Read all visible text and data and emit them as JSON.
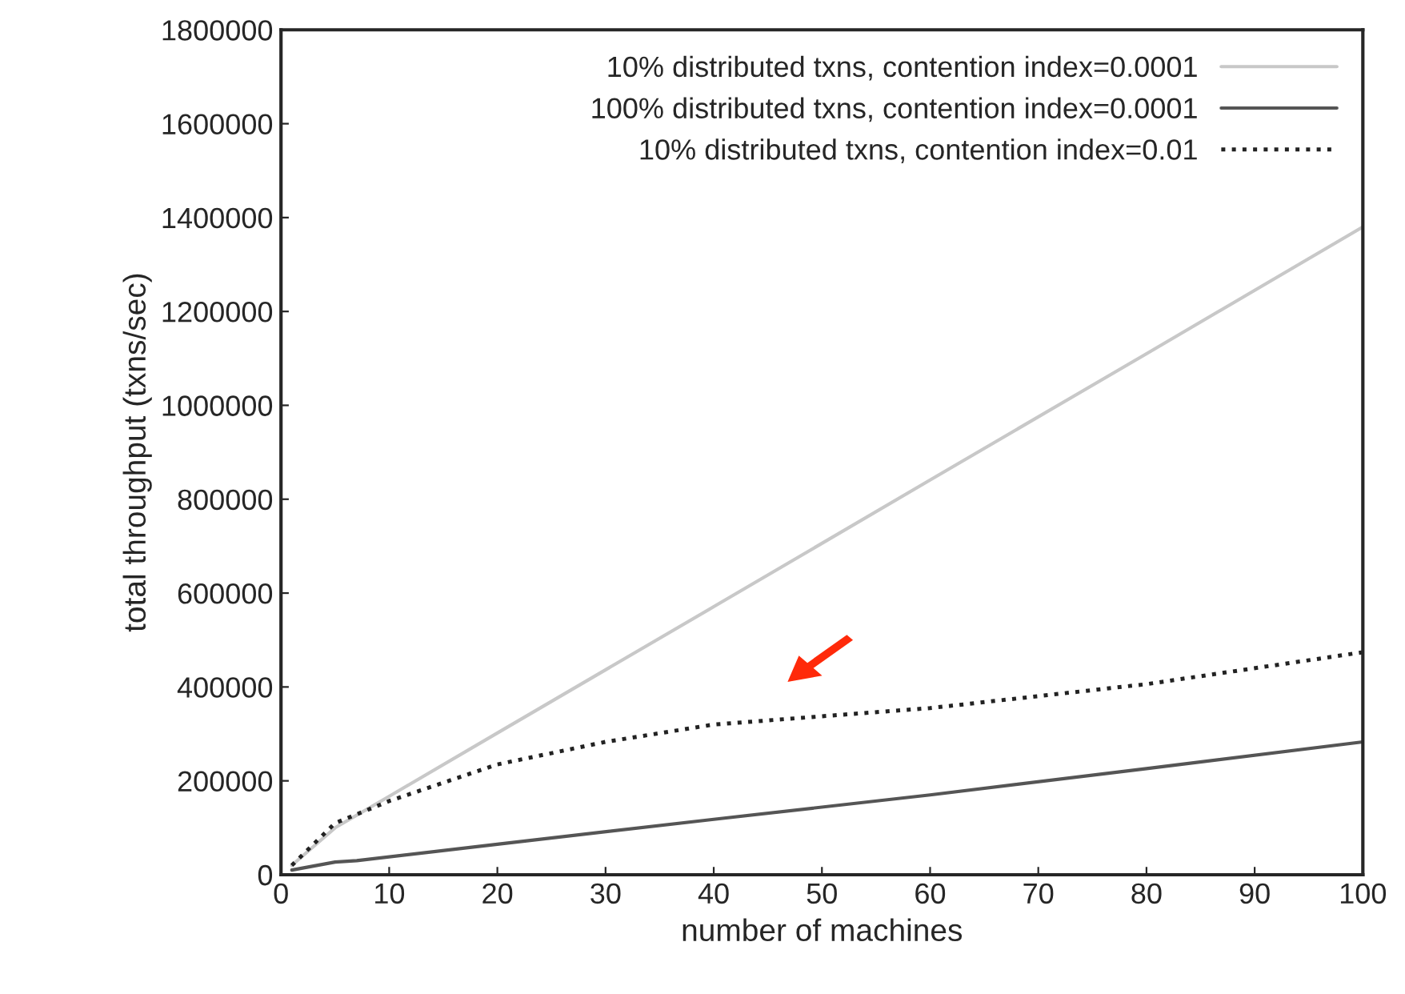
{
  "chart_data": {
    "type": "line",
    "xlabel": "number of machines",
    "ylabel": "total throughput (txns/sec)",
    "xlim": [
      0,
      100
    ],
    "xticks": [
      0,
      10,
      20,
      30,
      40,
      50,
      60,
      70,
      80,
      90,
      100
    ],
    "ylim": [
      0,
      1800000
    ],
    "yticks": [
      0,
      200000,
      400000,
      600000,
      800000,
      1000000,
      1200000,
      1400000,
      1600000,
      1800000
    ],
    "grid": false,
    "legend": "top right",
    "series": [
      {
        "name": "10% distributed txns, contention index=0.0001",
        "color": "#c8c8c8",
        "line_style": "solid",
        "x": [
          1,
          5,
          10,
          20,
          40,
          60,
          80,
          100
        ],
        "values": [
          20000,
          100000,
          167000,
          302000,
          571000,
          841000,
          1110000,
          1380000
        ]
      },
      {
        "name": "100% distributed txns, contention index=0.0001",
        "color": "#555555",
        "line_style": "solid",
        "x": [
          1,
          5,
          7,
          20,
          40,
          60,
          80,
          100
        ],
        "values": [
          10000,
          27000,
          30000,
          65000,
          118000,
          170000,
          226000,
          283000
        ]
      },
      {
        "name": "10% distributed txns, contention index=0.01",
        "color": "#222222",
        "line_style": "dotted",
        "x": [
          1,
          5,
          10,
          20,
          30,
          40,
          60,
          80,
          100
        ],
        "values": [
          20000,
          110000,
          157000,
          235000,
          283000,
          320000,
          355000,
          406000,
          474000
        ]
      }
    ]
  }
}
